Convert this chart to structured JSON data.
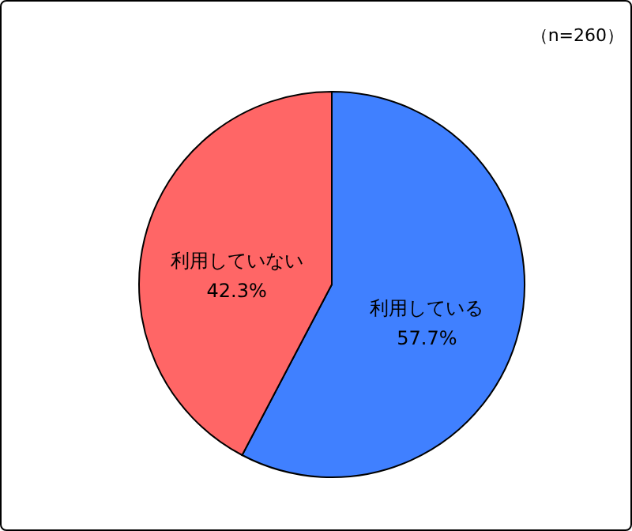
{
  "chart_data": {
    "type": "pie",
    "categories": [
      "利用している",
      "利用していない"
    ],
    "values": [
      57.7,
      42.3
    ],
    "colors": [
      "#4080ff",
      "#ff6666"
    ],
    "value_labels": [
      "57.7%",
      "42.3%"
    ],
    "annotations": [
      "（n=260）"
    ]
  }
}
